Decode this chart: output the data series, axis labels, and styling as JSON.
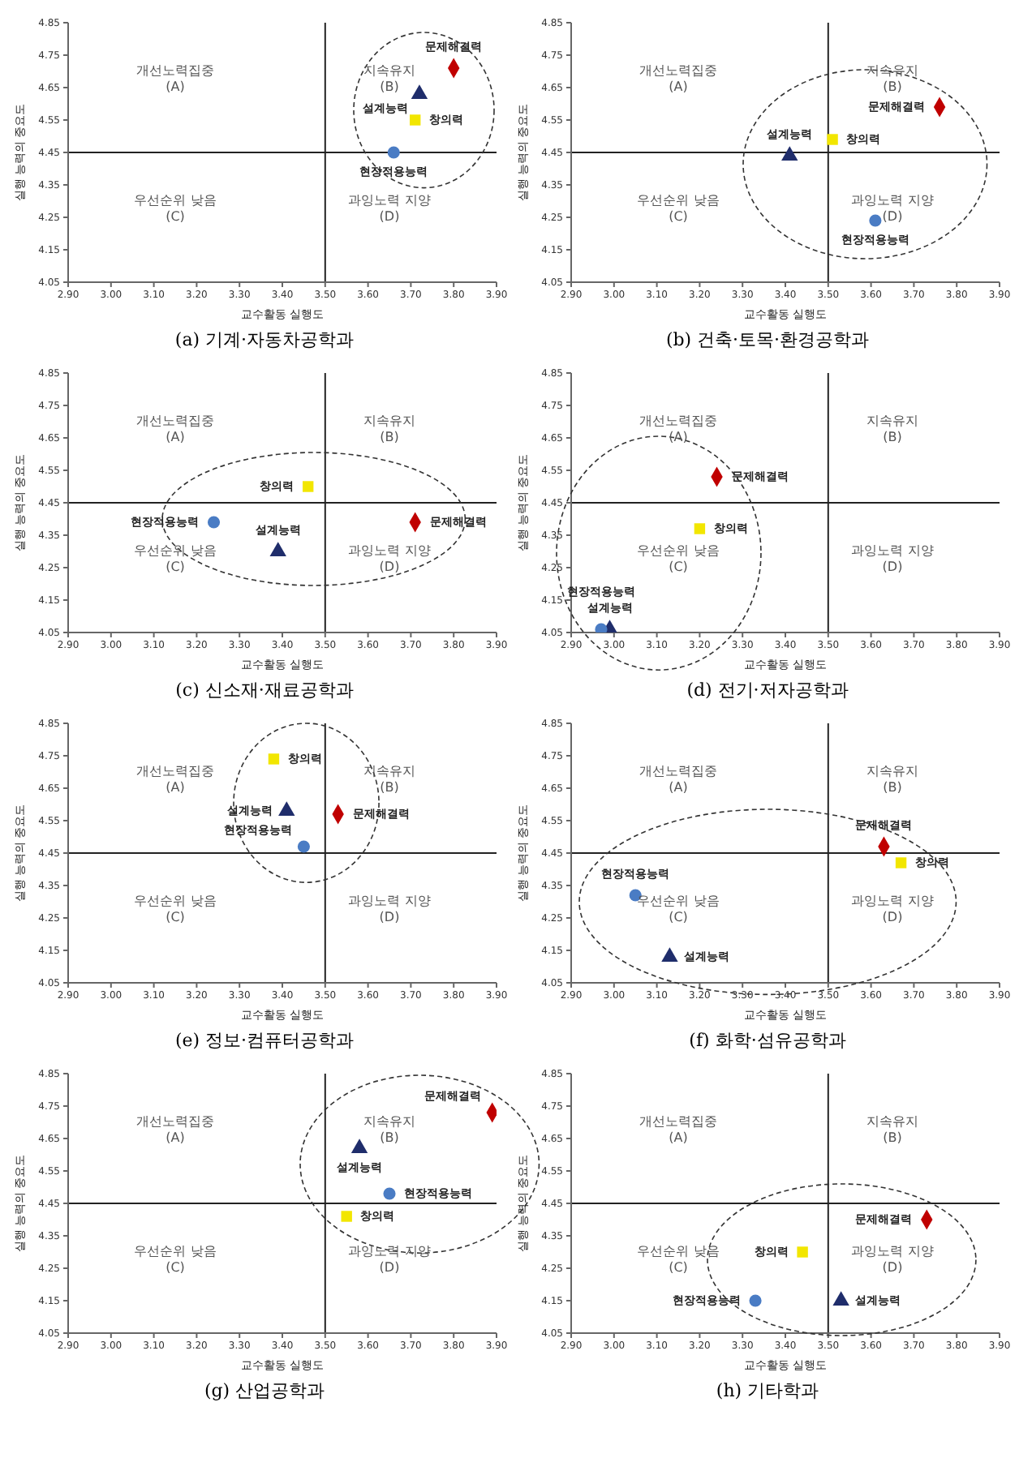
{
  "chart_data": [
    {
      "type": "scatter",
      "title": "(a) 기계·자동차공학과",
      "xlabel": "교수활동 실행도",
      "ylabel": "실행 능력의 중요도",
      "xlim": [
        2.9,
        3.9
      ],
      "ylim": [
        4.05,
        4.85
      ],
      "xticks": [
        {
          "value": 2.9,
          "label": "2.90"
        },
        {
          "value": 3,
          "label": "3.00"
        },
        {
          "value": 3.1,
          "label": "3.10"
        },
        {
          "value": 3.2,
          "label": "3.20"
        },
        {
          "value": 3.3,
          "label": "3.30"
        },
        {
          "value": 3.4,
          "label": "3.40"
        },
        {
          "value": 3.5,
          "label": "3.50"
        },
        {
          "value": 3.6,
          "label": "3.60"
        },
        {
          "value": 3.7,
          "label": "3.70"
        },
        {
          "value": 3.8,
          "label": "3.80"
        },
        {
          "value": 3.9,
          "label": "3.90"
        }
      ],
      "yticks": [
        4.05,
        4.15,
        4.25,
        4.35,
        4.45,
        4.55,
        4.65,
        4.75,
        4.85
      ],
      "ref_lines": [
        {
          "axis": "x",
          "value": 3.5,
          "color": "#222222"
        },
        {
          "axis": "y",
          "value": 4.45,
          "color": "#222222"
        }
      ],
      "annotations": [
        "개선노력집중 (A)",
        "지속유지 (B)",
        "우선순위 낮음 (C)",
        "과잉노력 지양 (D)"
      ],
      "series": [
        {
          "name": "창의력",
          "color": "#f2e600",
          "marker": "square",
          "x": [
            3.71
          ],
          "values": [
            4.55
          ]
        },
        {
          "name": "문제해결력",
          "color": "#c00000",
          "marker": "diamond",
          "x": [
            3.8
          ],
          "values": [
            4.71
          ]
        },
        {
          "name": "설계능력",
          "color": "#1f2d6b",
          "marker": "triangle",
          "x": [
            3.72
          ],
          "values": [
            4.63
          ]
        },
        {
          "name": "현장적용능력",
          "color": "#4a7cc4",
          "marker": "circle",
          "x": [
            3.66
          ],
          "values": [
            4.45
          ]
        }
      ]
    },
    {
      "type": "scatter",
      "title": "(b) 건축·토목·환경공학과",
      "xlabel": "교수활동 실행도",
      "ylabel": "실행 능력의 중요도",
      "xlim": [
        2.9,
        3.9
      ],
      "ylim": [
        4.05,
        4.85
      ],
      "xticks": [
        {
          "value": 2.9,
          "label": "2.90"
        },
        {
          "value": 3,
          "label": "3.00"
        },
        {
          "value": 3.1,
          "label": "3.10"
        },
        {
          "value": 3.2,
          "label": "3.20"
        },
        {
          "value": 3.3,
          "label": "3.30"
        },
        {
          "value": 3.4,
          "label": "3.40"
        },
        {
          "value": 3.5,
          "label": "3.50"
        },
        {
          "value": 3.6,
          "label": "3.60"
        },
        {
          "value": 3.7,
          "label": "3.70"
        },
        {
          "value": 3.8,
          "label": "3.80"
        },
        {
          "value": 3.9,
          "label": "3.90"
        }
      ],
      "yticks": [
        4.05,
        4.15,
        4.25,
        4.35,
        4.45,
        4.55,
        4.65,
        4.75,
        4.85
      ],
      "ref_lines": [
        {
          "axis": "x",
          "value": 3.5,
          "color": "#222222"
        },
        {
          "axis": "y",
          "value": 4.45,
          "color": "#222222"
        }
      ],
      "annotations": [
        "개선노력집중 (A)",
        "지속유지 (B)",
        "우선순위 낮음 (C)",
        "과잉노력 지양 (D)"
      ],
      "series": [
        {
          "name": "창의력",
          "color": "#f2e600",
          "marker": "square",
          "x": [
            3.51
          ],
          "values": [
            4.49
          ]
        },
        {
          "name": "문제해결력",
          "color": "#c00000",
          "marker": "diamond",
          "x": [
            3.76
          ],
          "values": [
            4.59
          ]
        },
        {
          "name": "설계능력",
          "color": "#1f2d6b",
          "marker": "triangle",
          "x": [
            3.41
          ],
          "values": [
            4.44
          ]
        },
        {
          "name": "현장적용능력",
          "color": "#4a7cc4",
          "marker": "circle",
          "x": [
            3.61
          ],
          "values": [
            4.24
          ]
        }
      ]
    },
    {
      "type": "scatter",
      "title": "(c) 신소재·재료공학과",
      "xlabel": "교수활동 실행도",
      "ylabel": "실행 능력의 중요도",
      "xlim": [
        2.9,
        3.9
      ],
      "ylim": [
        4.05,
        4.85
      ],
      "xticks": [
        {
          "value": 2.9,
          "label": "2.90"
        },
        {
          "value": 3,
          "label": "3.00"
        },
        {
          "value": 3.1,
          "label": "3.10"
        },
        {
          "value": 3.2,
          "label": "3.20"
        },
        {
          "value": 3.3,
          "label": "3.30"
        },
        {
          "value": 3.4,
          "label": "3.40"
        },
        {
          "value": 3.5,
          "label": "3.50"
        },
        {
          "value": 3.6,
          "label": "3.60"
        },
        {
          "value": 3.7,
          "label": "3.70"
        },
        {
          "value": 3.8,
          "label": "3.80"
        },
        {
          "value": 3.9,
          "label": "3.90"
        }
      ],
      "yticks": [
        4.05,
        4.15,
        4.25,
        4.35,
        4.45,
        4.55,
        4.65,
        4.75,
        4.85
      ],
      "ref_lines": [
        {
          "axis": "x",
          "value": 3.5,
          "color": "#222222"
        },
        {
          "axis": "y",
          "value": 4.45,
          "color": "#222222"
        }
      ],
      "annotations": [
        "개선노력집중 (A)",
        "지속유지 (B)",
        "우선순위 낮음 (C)",
        "과잉노력 지양 (D)"
      ],
      "series": [
        {
          "name": "창의력",
          "color": "#f2e600",
          "marker": "square",
          "x": [
            3.46
          ],
          "values": [
            4.5
          ]
        },
        {
          "name": "문제해결력",
          "color": "#c00000",
          "marker": "diamond",
          "x": [
            3.71
          ],
          "values": [
            4.39
          ]
        },
        {
          "name": "설계능력",
          "color": "#1f2d6b",
          "marker": "triangle",
          "x": [
            3.39
          ],
          "values": [
            4.3
          ]
        },
        {
          "name": "현장적용능력",
          "color": "#4a7cc4",
          "marker": "circle",
          "x": [
            3.24
          ],
          "values": [
            4.39
          ]
        }
      ]
    },
    {
      "type": "scatter",
      "title": "(d) 전기·저자공학과",
      "xlabel": "교수활동 실행도",
      "ylabel": "실행 능력의 중요도",
      "xlim": [
        2.9,
        3.9
      ],
      "ylim": [
        4.05,
        4.85
      ],
      "xticks": [
        {
          "value": 2.9,
          "label": "2.90"
        },
        {
          "value": 3,
          "label": "3.00"
        },
        {
          "value": 3.1,
          "label": "3.10"
        },
        {
          "value": 3.2,
          "label": "3.20"
        },
        {
          "value": 3.3,
          "label": "3.30"
        },
        {
          "value": 3.4,
          "label": "3.40"
        },
        {
          "value": 3.5,
          "label": "3.50"
        },
        {
          "value": 3.6,
          "label": "3.60"
        },
        {
          "value": 3.7,
          "label": "3.70"
        },
        {
          "value": 3.8,
          "label": "3.80"
        },
        {
          "value": 3.9,
          "label": "3.90"
        }
      ],
      "yticks": [
        4.05,
        4.15,
        4.25,
        4.35,
        4.45,
        4.55,
        4.65,
        4.75,
        4.85
      ],
      "ref_lines": [
        {
          "axis": "x",
          "value": 3.5,
          "color": "#222222"
        },
        {
          "axis": "y",
          "value": 4.45,
          "color": "#222222"
        }
      ],
      "annotations": [
        "개선노력집중 (A)",
        "지속유지 (B)",
        "우선순위 낮음 (C)",
        "과잉노력 지양 (D)"
      ],
      "series": [
        {
          "name": "창의력",
          "color": "#f2e600",
          "marker": "square",
          "x": [
            3.2
          ],
          "values": [
            4.37
          ]
        },
        {
          "name": "문제해결력",
          "color": "#c00000",
          "marker": "diamond",
          "x": [
            3.24
          ],
          "values": [
            4.53
          ]
        },
        {
          "name": "설계능력",
          "color": "#1f2d6b",
          "marker": "triangle",
          "x": [
            2.99
          ],
          "values": [
            4.06
          ]
        },
        {
          "name": "현장적용능력",
          "color": "#4a7cc4",
          "marker": "circle",
          "x": [
            2.97
          ],
          "values": [
            4.06
          ]
        }
      ]
    },
    {
      "type": "scatter",
      "title": "(e) 정보·컴퓨터공학과",
      "xlabel": "교수활동 실행도",
      "ylabel": "실행 능력의 중요도",
      "xlim": [
        2.9,
        3.9
      ],
      "ylim": [
        4.05,
        4.85
      ],
      "xticks": [
        {
          "value": 2.9,
          "label": "2.90"
        },
        {
          "value": 3,
          "label": "3.00"
        },
        {
          "value": 3.1,
          "label": "3.10"
        },
        {
          "value": 3.2,
          "label": "3.20"
        },
        {
          "value": 3.3,
          "label": "3.30"
        },
        {
          "value": 3.4,
          "label": "3.40"
        },
        {
          "value": 3.5,
          "label": "3.50"
        },
        {
          "value": 3.6,
          "label": "3.60"
        },
        {
          "value": 3.7,
          "label": "3.70"
        },
        {
          "value": 3.8,
          "label": "3.80"
        },
        {
          "value": 3.9,
          "label": "3.90"
        }
      ],
      "yticks": [
        4.05,
        4.15,
        4.25,
        4.35,
        4.45,
        4.55,
        4.65,
        4.75,
        4.85
      ],
      "ref_lines": [
        {
          "axis": "x",
          "value": 3.5,
          "color": "#222222"
        },
        {
          "axis": "y",
          "value": 4.45,
          "color": "#222222"
        }
      ],
      "annotations": [
        "개선노력집중 (A)",
        "지속유지 (B)",
        "우선순위 낮음 (C)",
        "과잉노력 지양 (D)"
      ],
      "series": [
        {
          "name": "창의력",
          "color": "#f2e600",
          "marker": "square",
          "x": [
            3.38
          ],
          "values": [
            4.74
          ]
        },
        {
          "name": "문제해결력",
          "color": "#c00000",
          "marker": "diamond",
          "x": [
            3.53
          ],
          "values": [
            4.57
          ]
        },
        {
          "name": "설계능력",
          "color": "#1f2d6b",
          "marker": "triangle",
          "x": [
            3.41
          ],
          "values": [
            4.58
          ]
        },
        {
          "name": "현장적용능력",
          "color": "#4a7cc4",
          "marker": "circle",
          "x": [
            3.45
          ],
          "values": [
            4.47
          ]
        }
      ]
    },
    {
      "type": "scatter",
      "title": "(f) 화학·섬유공학과",
      "xlabel": "교수활동 실행도",
      "ylabel": "실행 능력의 중요도",
      "xlim": [
        2.9,
        3.9
      ],
      "ylim": [
        4.05,
        4.85
      ],
      "xticks": [
        {
          "value": 2.9,
          "label": "2.90"
        },
        {
          "value": 3,
          "label": "3.00"
        },
        {
          "value": 3.1,
          "label": "3.10"
        },
        {
          "value": 3.2,
          "label": "3.20"
        },
        {
          "value": 3.3,
          "label": "3.30"
        },
        {
          "value": 3.4,
          "label": "3.40"
        },
        {
          "value": 3.5,
          "label": "3.50"
        },
        {
          "value": 3.6,
          "label": "3.60"
        },
        {
          "value": 3.7,
          "label": "3.70"
        },
        {
          "value": 3.8,
          "label": "3.80"
        },
        {
          "value": 3.9,
          "label": "3.90"
        }
      ],
      "yticks": [
        4.05,
        4.15,
        4.25,
        4.35,
        4.45,
        4.55,
        4.65,
        4.75,
        4.85
      ],
      "ref_lines": [
        {
          "axis": "x",
          "value": 3.5,
          "color": "#222222"
        },
        {
          "axis": "y",
          "value": 4.45,
          "color": "#222222"
        }
      ],
      "annotations": [
        "개선노력집중 (A)",
        "지속유지 (B)",
        "우선순위 낮음 (C)",
        "과잉노력 지양 (D)"
      ],
      "series": [
        {
          "name": "창의력",
          "color": "#f2e600",
          "marker": "square",
          "x": [
            3.67
          ],
          "values": [
            4.42
          ]
        },
        {
          "name": "문제해결력",
          "color": "#c00000",
          "marker": "diamond",
          "x": [
            3.63
          ],
          "values": [
            4.47
          ]
        },
        {
          "name": "설계능력",
          "color": "#1f2d6b",
          "marker": "triangle",
          "x": [
            3.13
          ],
          "values": [
            4.13
          ]
        },
        {
          "name": "현장적용능력",
          "color": "#4a7cc4",
          "marker": "circle",
          "x": [
            3.05
          ],
          "values": [
            4.32
          ]
        }
      ]
    },
    {
      "type": "scatter",
      "title": "(g) 산업공학과",
      "xlabel": "교수활동 실행도",
      "ylabel": "실행 능력의 중요도",
      "xlim": [
        2.9,
        3.9
      ],
      "ylim": [
        4.05,
        4.85
      ],
      "xticks": [
        {
          "value": 2.9,
          "label": "2.90"
        },
        {
          "value": 3,
          "label": "3.00"
        },
        {
          "value": 3.1,
          "label": "3.10"
        },
        {
          "value": 3.2,
          "label": "3.20"
        },
        {
          "value": 3.3,
          "label": "3.30"
        },
        {
          "value": 3.4,
          "label": "3.40"
        },
        {
          "value": 3.5,
          "label": "3.50"
        },
        {
          "value": 3.6,
          "label": "3.60"
        },
        {
          "value": 3.7,
          "label": "3.70"
        },
        {
          "value": 3.8,
          "label": "3.80"
        },
        {
          "value": 3.9,
          "label": "3.90"
        }
      ],
      "yticks": [
        4.05,
        4.15,
        4.25,
        4.35,
        4.45,
        4.55,
        4.65,
        4.75,
        4.85
      ],
      "ref_lines": [
        {
          "axis": "x",
          "value": 3.5,
          "color": "#222222"
        },
        {
          "axis": "y",
          "value": 4.45,
          "color": "#222222"
        }
      ],
      "annotations": [
        "개선노력집중 (A)",
        "지속유지 (B)",
        "우선순위 낮음 (C)",
        "과잉노력 지양 (D)"
      ],
      "series": [
        {
          "name": "창의력",
          "color": "#f2e600",
          "marker": "square",
          "x": [
            3.55
          ],
          "values": [
            4.41
          ]
        },
        {
          "name": "문제해결력",
          "color": "#c00000",
          "marker": "diamond",
          "x": [
            3.89
          ],
          "values": [
            4.73
          ]
        },
        {
          "name": "설계능력",
          "color": "#1f2d6b",
          "marker": "triangle",
          "x": [
            3.58
          ],
          "values": [
            4.62
          ]
        },
        {
          "name": "현장적용능력",
          "color": "#4a7cc4",
          "marker": "circle",
          "x": [
            3.65
          ],
          "values": [
            4.48
          ]
        }
      ]
    },
    {
      "type": "scatter",
      "title": "(h) 기타학과",
      "xlabel": "교수활동 실행도",
      "ylabel": "실행 능력의 중요도",
      "xlim": [
        2.9,
        3.9
      ],
      "ylim": [
        4.05,
        4.85
      ],
      "xticks": [
        {
          "value": 2.9,
          "label": "2.90"
        },
        {
          "value": 3,
          "label": "3.00"
        },
        {
          "value": 3.1,
          "label": "3.10"
        },
        {
          "value": 3.2,
          "label": "3.20"
        },
        {
          "value": 3.3,
          "label": "3.30"
        },
        {
          "value": 3.4,
          "label": "3.40"
        },
        {
          "value": 3.5,
          "label": "3.50"
        },
        {
          "value": 3.6,
          "label": "3.60"
        },
        {
          "value": 3.7,
          "label": "3.70"
        },
        {
          "value": 3.8,
          "label": "3.80"
        },
        {
          "value": 3.9,
          "label": "3.90"
        }
      ],
      "yticks": [
        4.05,
        4.15,
        4.25,
        4.35,
        4.45,
        4.55,
        4.65,
        4.75,
        4.85
      ],
      "ref_lines": [
        {
          "axis": "x",
          "value": 3.5,
          "color": "#222222"
        },
        {
          "axis": "y",
          "value": 4.45,
          "color": "#222222"
        }
      ],
      "annotations": [
        "개선노력집중 (A)",
        "지속유지 (B)",
        "우선순위 낮음 (C)",
        "과잉노력 지양 (D)"
      ],
      "series": [
        {
          "name": "창의력",
          "color": "#f2e600",
          "marker": "square",
          "x": [
            3.44
          ],
          "values": [
            4.3
          ]
        },
        {
          "name": "문제해결력",
          "color": "#c00000",
          "marker": "diamond",
          "x": [
            3.73
          ],
          "values": [
            4.4
          ]
        },
        {
          "name": "설계능력",
          "color": "#1f2d6b",
          "marker": "triangle",
          "x": [
            3.53
          ],
          "values": [
            4.15
          ]
        },
        {
          "name": "현장적용능력",
          "color": "#4a7cc4",
          "marker": "circle",
          "x": [
            3.33
          ],
          "values": [
            4.15
          ]
        }
      ]
    }
  ]
}
